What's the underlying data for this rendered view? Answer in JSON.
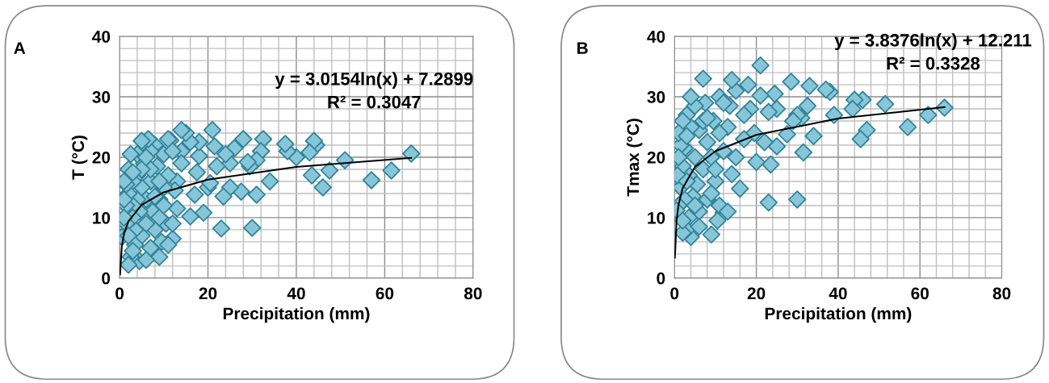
{
  "chart_data": [
    {
      "type": "scatter",
      "title": "A",
      "xlabel": "Precipitation (mm)",
      "ylabel": "T (°C)",
      "xlim": [
        0,
        80
      ],
      "xticks": [
        0,
        20,
        40,
        60,
        80
      ],
      "ylim": [
        0,
        40
      ],
      "yticks": [
        0,
        10,
        20,
        30,
        40
      ],
      "grid": true,
      "legend": false,
      "marker": "diamond",
      "annotations": [
        "y = 3.0154ln(x) + 7.2899\nR² = 0.3047"
      ],
      "series": [
        {
          "color": "#87c6d8",
          "x": [
            66,
            61.5,
            57,
            51,
            47.5,
            46,
            44.5,
            44,
            43.5,
            43,
            40,
            38,
            37.5,
            34,
            32.5,
            32,
            31,
            31,
            30,
            29.5,
            29,
            28,
            27.5,
            26,
            25,
            25,
            24,
            23.5,
            23,
            22,
            21.5,
            21,
            20,
            20.5,
            19,
            18,
            18,
            17.5,
            17,
            16,
            16,
            15,
            14,
            14,
            14,
            13,
            13,
            12.5,
            12,
            11.5,
            11,
            11,
            10.5,
            10,
            10,
            9.5,
            9,
            9,
            8.5,
            8,
            8,
            7.5,
            7,
            7,
            7,
            6.5,
            6,
            6,
            5.5,
            5,
            5,
            5,
            4.5,
            4.5,
            4,
            4,
            4,
            3.5,
            3.5,
            3,
            3,
            3,
            2.5,
            2.5,
            2,
            2,
            2,
            1.5,
            1.5,
            1.5,
            1,
            1,
            0.5,
            1,
            2,
            3,
            6,
            8,
            9,
            10,
            11,
            12,
            7,
            5,
            3,
            6,
            9,
            12
          ],
          "values": [
            20.6,
            17.8,
            16.2,
            19.5,
            17.8,
            15,
            22,
            22.7,
            17,
            20.8,
            20,
            21,
            22.2,
            16,
            23,
            21,
            13.8,
            19.5,
            8.3,
            18.5,
            19.2,
            23,
            14.3,
            21.5,
            15,
            19,
            20.5,
            13.5,
            8.2,
            18.5,
            21.8,
            24.5,
            15,
            15.7,
            10.8,
            20.2,
            22.5,
            17.5,
            13.8,
            10.2,
            22.5,
            24,
            24.5,
            21,
            19,
            11.5,
            16,
            14.5,
            6.5,
            22.8,
            17,
            23,
            9,
            15,
            20.5,
            6,
            3.5,
            13,
            18.5,
            22,
            8,
            11,
            16,
            21,
            5,
            23,
            13,
            9,
            19,
            22.7,
            15,
            7,
            2.8,
            11,
            20.5,
            17,
            13,
            8,
            5.5,
            16,
            12,
            10,
            20.5,
            3.5,
            18,
            14,
            2.2,
            9,
            12,
            15.5,
            13,
            16,
            6.8,
            10,
            7,
            4.5,
            3,
            13.5,
            10,
            12,
            5.5,
            9,
            18,
            18,
            17.5,
            20,
            16,
            21
          ]
        },
        {
          "type": "line",
          "color": "#000000",
          "marker": "none",
          "line_style": "solid",
          "x": [
            0.11,
            0.5,
            1,
            2,
            5,
            10,
            20,
            40,
            66
          ],
          "values": [
            0.6,
            5.2,
            7.3,
            9.4,
            12.1,
            14.2,
            16.3,
            18.4,
            19.9
          ]
        }
      ]
    },
    {
      "type": "scatter",
      "title": "B",
      "xlabel": "Precipitation (mm)",
      "ylabel": "Tmax (°C)",
      "xlim": [
        0,
        80
      ],
      "xticks": [
        0,
        20,
        40,
        60,
        80
      ],
      "ylim": [
        0,
        40
      ],
      "yticks": [
        0,
        10,
        20,
        30,
        40
      ],
      "grid": true,
      "legend": false,
      "marker": "diamond",
      "annotations": [
        "y = 3.8376ln(x) + 12.211\nR² = 0.3328"
      ],
      "series": [
        {
          "color": "#87c6d8",
          "x": [
            66,
            62,
            57,
            51.5,
            47,
            46,
            45.5,
            44,
            43.5,
            39,
            38,
            37,
            34,
            33,
            32.5,
            31.5,
            31,
            30,
            30,
            29,
            28.5,
            27.5,
            25,
            25,
            24.5,
            23.5,
            23,
            23,
            22,
            21,
            21,
            20,
            19.5,
            18.5,
            18,
            17,
            16,
            15,
            14,
            14,
            13.5,
            13,
            12,
            12,
            11,
            11,
            10.5,
            10,
            9.5,
            9,
            9,
            8,
            8,
            7.5,
            7,
            7,
            6,
            6,
            5.5,
            5,
            5,
            4.5,
            4,
            4,
            3.5,
            3.5,
            3,
            3,
            2.5,
            2.5,
            2,
            2,
            2,
            1.5,
            1.5,
            1,
            1,
            0.5,
            1,
            0.7,
            3,
            6,
            9,
            11,
            13,
            15,
            17,
            7,
            4,
            12,
            10,
            5,
            8,
            2,
            3
          ],
          "values": [
            28.2,
            27,
            25,
            28.8,
            24.5,
            29.5,
            23,
            29.5,
            28,
            27,
            30.8,
            31.2,
            23.5,
            31.8,
            28.5,
            20.8,
            26.5,
            13,
            27,
            26,
            32.5,
            23.8,
            21.8,
            28,
            30.5,
            18.8,
            12.5,
            27.5,
            22.5,
            35.2,
            30.2,
            19.2,
            24,
            28,
            32,
            27,
            14.8,
            31,
            32.8,
            17.2,
            28.5,
            25,
            21,
            10.8,
            24,
            30,
            9.5,
            16,
            26,
            7.2,
            20,
            13,
            22.5,
            29,
            33,
            18,
            11,
            24.5,
            15.5,
            28.5,
            20,
            13.5,
            6.8,
            25,
            17,
            10,
            27,
            8,
            21.5,
            13,
            26,
            18.5,
            7.5,
            15,
            22,
            24,
            12,
            11.2,
            20,
            17,
            16,
            8.5,
            14,
            12,
            11,
            20,
            23,
            26,
            30,
            29,
            18,
            12,
            26.5,
            9.5,
            23.5
          ]
        },
        {
          "type": "line",
          "color": "#000000",
          "marker": "none",
          "line_style": "solid",
          "x": [
            0.1,
            0.5,
            1,
            2,
            5,
            10,
            20,
            40,
            66
          ],
          "values": [
            3.4,
            9.5,
            12.2,
            14.9,
            18.4,
            21.0,
            23.7,
            26.4,
            28.3
          ]
        }
      ]
    }
  ]
}
